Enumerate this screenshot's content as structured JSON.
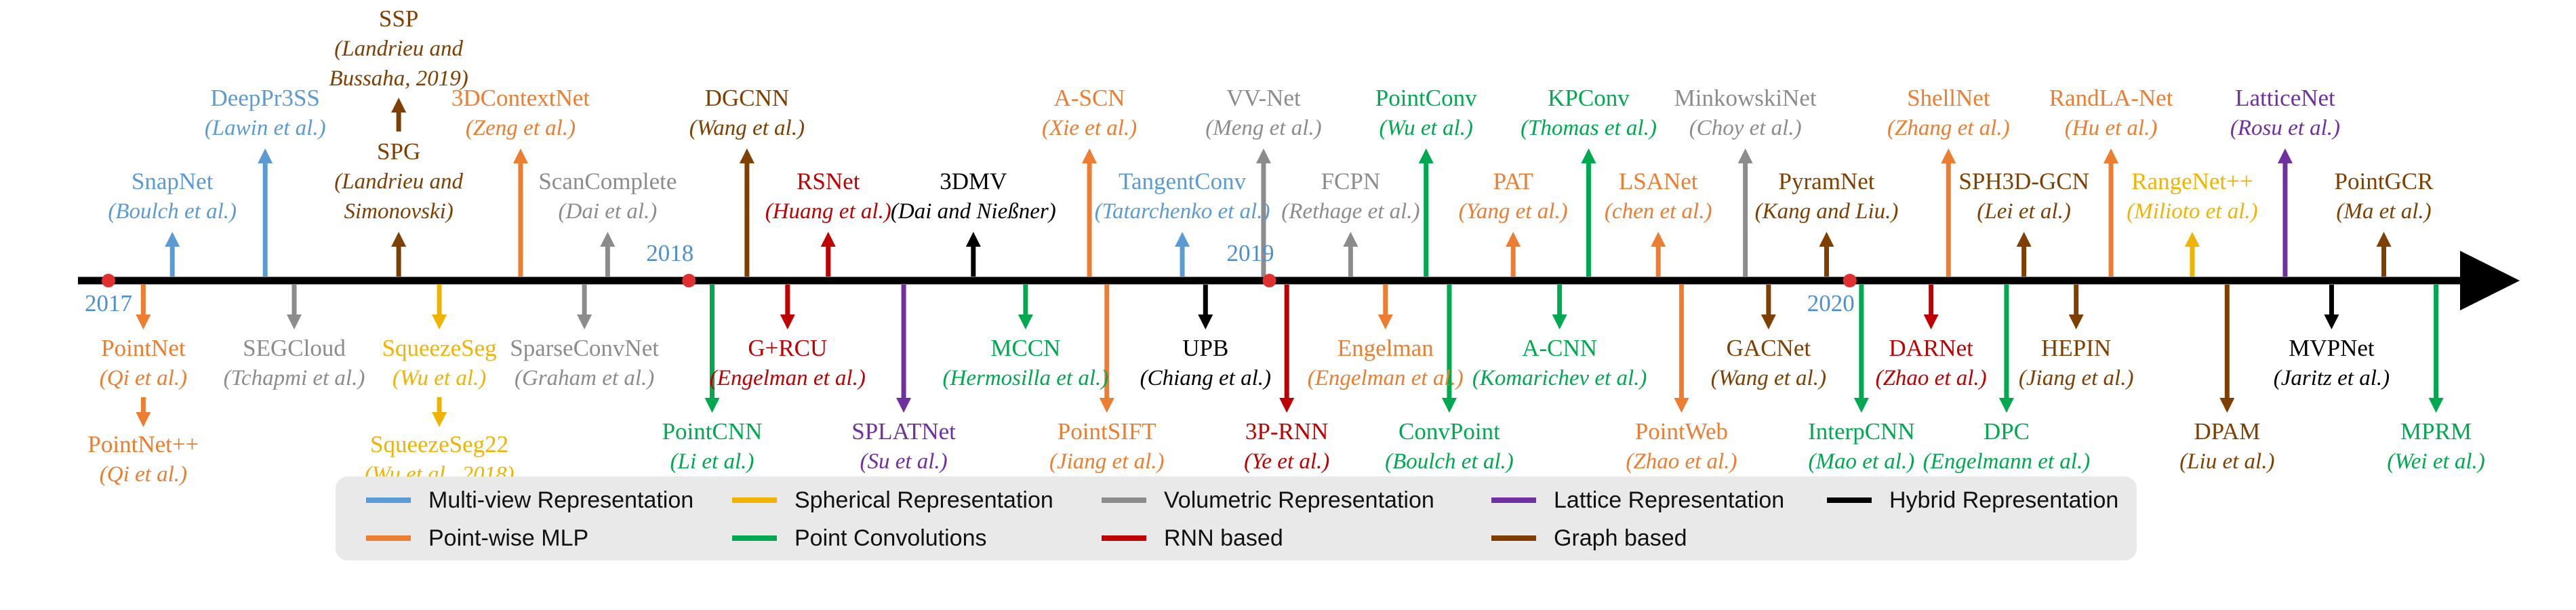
{
  "colors": {
    "multiview": "#5b9bd5",
    "pointmlp": "#ed7d31",
    "spherical": "#f0b400",
    "convolution": "#00a94f",
    "volumetric": "#8c8c8c",
    "rnn": "#c00000",
    "lattice": "#7030a0",
    "graph": "#7f3f00",
    "hybrid": "#000000",
    "axis": "#000000",
    "yearmark": "#e03030",
    "yeartext": "#4f8fd0"
  },
  "years": [
    {
      "label": "2017",
      "t": 2017.0
    },
    {
      "label": "2018",
      "t": 2018.0
    },
    {
      "label": "2019",
      "t": 2019.0
    },
    {
      "label": "2020",
      "t": 2020.0
    }
  ],
  "methods": [
    {
      "name": "SnapNet",
      "authors": "(Boulch et al.)",
      "cat": "multiview",
      "side": "up",
      "t": 2017.11,
      "len": 0.35
    },
    {
      "name": "DeepPr3SS",
      "authors": "(Lawin et al.)",
      "cat": "multiview",
      "side": "up",
      "t": 2017.27,
      "len": 0.85
    },
    {
      "name": "SSP",
      "authors": "(Landrieu and Bussaha, 2019)",
      "cat": "graph",
      "side": "up",
      "t": 2017.5,
      "len": 0.35,
      "stack": 2
    },
    {
      "name": "SPG",
      "authors": "(Landrieu and Simonovski)",
      "cat": "graph",
      "side": "up",
      "t": 2017.5,
      "len": 0.35
    },
    {
      "name": "3DContextNet",
      "authors": "(Zeng et al.)",
      "cat": "pointmlp",
      "side": "up",
      "t": 2017.71,
      "len": 0.85
    },
    {
      "name": "ScanComplete",
      "authors": "(Dai et al.)",
      "cat": "volumetric",
      "side": "up",
      "t": 2017.86,
      "len": 0.35
    },
    {
      "name": "DGCNN",
      "authors": "(Wang et al.)",
      "cat": "graph",
      "side": "up",
      "t": 2018.1,
      "len": 0.85
    },
    {
      "name": "RSNet",
      "authors": "(Huang et al.)",
      "cat": "rnn",
      "side": "up",
      "t": 2018.24,
      "len": 0.35
    },
    {
      "name": "3DMV",
      "authors": "(Dai and Nießner)",
      "cat": "hybrid",
      "side": "up",
      "t": 2018.49,
      "len": 0.35
    },
    {
      "name": "A-SCN",
      "authors": "(Xie et al.)",
      "cat": "pointmlp",
      "side": "up",
      "t": 2018.69,
      "len": 0.85
    },
    {
      "name": "TangentConv",
      "authors": "(Tatarchenko et al.)",
      "cat": "multiview",
      "side": "up",
      "t": 2018.85,
      "len": 0.35
    },
    {
      "name": "VV-Net",
      "authors": "(Meng et al.)",
      "cat": "volumetric",
      "side": "up",
      "t": 2018.99,
      "len": 0.85
    },
    {
      "name": "FCPN",
      "authors": "(Rethage et al.)",
      "cat": "volumetric",
      "side": "up",
      "t": 2019.14,
      "len": 0.35
    },
    {
      "name": "PointConv",
      "authors": "(Wu et al.)",
      "cat": "convolution",
      "side": "up",
      "t": 2019.27,
      "len": 0.85
    },
    {
      "name": "PAT",
      "authors": "(Yang et al.)",
      "cat": "pointmlp",
      "side": "up",
      "t": 2019.42,
      "len": 0.35
    },
    {
      "name": "KPConv",
      "authors": "(Thomas et al.)",
      "cat": "convolution",
      "side": "up",
      "t": 2019.55,
      "len": 0.85
    },
    {
      "name": "LSANet",
      "authors": "(chen et al.)",
      "cat": "pointmlp",
      "side": "up",
      "t": 2019.67,
      "len": 0.35
    },
    {
      "name": "MinkowskiNet",
      "authors": "(Choy et al.)",
      "cat": "volumetric",
      "side": "up",
      "t": 2019.82,
      "len": 0.85
    },
    {
      "name": "PyramNet",
      "authors": "(Kang and Liu.)",
      "cat": "graph",
      "side": "up",
      "t": 2019.96,
      "len": 0.35
    },
    {
      "name": "ShellNet",
      "authors": "(Zhang et al.)",
      "cat": "pointmlp",
      "side": "up",
      "t": 2020.17,
      "len": 0.85
    },
    {
      "name": "SPH3D-GCN",
      "authors": "(Lei et al.)",
      "cat": "graph",
      "side": "up",
      "t": 2020.3,
      "len": 0.35
    },
    {
      "name": "RandLA-Net",
      "authors": "(Hu et al.)",
      "cat": "pointmlp",
      "side": "up",
      "t": 2020.45,
      "len": 0.85
    },
    {
      "name": "RangeNet++",
      "authors": "(Milioto et al.)",
      "cat": "spherical",
      "side": "up",
      "t": 2020.59,
      "len": 0.35
    },
    {
      "name": "LatticeNet",
      "authors": "(Rosu et al.)",
      "cat": "lattice",
      "side": "up",
      "t": 2020.75,
      "len": 0.85
    },
    {
      "name": "PointGCR",
      "authors": "(Ma et al.)",
      "cat": "graph",
      "side": "up",
      "t": 2020.92,
      "len": 0.35
    },
    {
      "name": "PointNet",
      "authors": "(Qi et al.)",
      "cat": "pointmlp",
      "side": "down",
      "t": 2017.06,
      "len": 0.35
    },
    {
      "name": "PointNet++",
      "authors": "(Qi et al.)",
      "cat": "pointmlp",
      "side": "down",
      "t": 2017.06,
      "len": 0.35,
      "stack": 2
    },
    {
      "name": "SEGCloud",
      "authors": "(Tchapmi et al.)",
      "cat": "volumetric",
      "side": "down",
      "t": 2017.32,
      "len": 0.35
    },
    {
      "name": "SqueezeSeg",
      "authors": "(Wu et al.)",
      "cat": "spherical",
      "side": "down",
      "t": 2017.57,
      "len": 0.35
    },
    {
      "name": "SqueezeSeg22",
      "authors": "(Wu et al., 2018)",
      "cat": "spherical",
      "side": "down",
      "t": 2017.57,
      "len": 0.35,
      "stack": 2
    },
    {
      "name": "SparseConvNet",
      "authors": "(Graham et al.)",
      "cat": "volumetric",
      "side": "down",
      "t": 2017.82,
      "len": 0.35
    },
    {
      "name": "PointCNN",
      "authors": "(Li et al.)",
      "cat": "convolution",
      "side": "down",
      "t": 2018.04,
      "len": 0.85
    },
    {
      "name": "G+RCU",
      "authors": "(Engelman et al.)",
      "cat": "rnn",
      "side": "down",
      "t": 2018.17,
      "len": 0.35
    },
    {
      "name": "SPLATNet",
      "authors": "(Su et al.)",
      "cat": "lattice",
      "side": "down",
      "t": 2018.37,
      "len": 0.85
    },
    {
      "name": "MCCN",
      "authors": "(Hermosilla et al.)",
      "cat": "convolution",
      "side": "down",
      "t": 2018.58,
      "len": 0.35
    },
    {
      "name": "PointSIFT",
      "authors": "(Jiang et al.)",
      "cat": "pointmlp",
      "side": "down",
      "t": 2018.72,
      "len": 0.85
    },
    {
      "name": "UPB",
      "authors": "(Chiang et al.)",
      "cat": "hybrid",
      "side": "down",
      "t": 2018.89,
      "len": 0.35
    },
    {
      "name": "3P-RNN",
      "authors": "(Ye et al.)",
      "cat": "rnn",
      "side": "down",
      "t": 2019.03,
      "len": 0.85
    },
    {
      "name": "Engelman",
      "authors": "(Engelman et al.)",
      "cat": "pointmlp",
      "side": "down",
      "t": 2019.2,
      "len": 0.35
    },
    {
      "name": "ConvPoint",
      "authors": "(Boulch et al.)",
      "cat": "convolution",
      "side": "down",
      "t": 2019.31,
      "len": 0.85
    },
    {
      "name": "A-CNN",
      "authors": "(Komarichev et al.)",
      "cat": "convolution",
      "side": "down",
      "t": 2019.5,
      "len": 0.35
    },
    {
      "name": "PointWeb",
      "authors": "(Zhao et al.)",
      "cat": "pointmlp",
      "side": "down",
      "t": 2019.71,
      "len": 0.85
    },
    {
      "name": "GACNet",
      "authors": "(Wang et al.)",
      "cat": "graph",
      "side": "down",
      "t": 2019.86,
      "len": 0.35
    },
    {
      "name": "InterpCNN",
      "authors": "(Mao et al.)",
      "cat": "convolution",
      "side": "down",
      "t": 2020.02,
      "len": 0.85
    },
    {
      "name": "DARNet",
      "authors": "(Zhao et al.)",
      "cat": "rnn",
      "side": "down",
      "t": 2020.14,
      "len": 0.35
    },
    {
      "name": "DPC",
      "authors": "(Engelmann et al.)",
      "cat": "convolution",
      "side": "down",
      "t": 2020.27,
      "len": 0.85
    },
    {
      "name": "HEPIN",
      "authors": "(Jiang et al.)",
      "cat": "graph",
      "side": "down",
      "t": 2020.39,
      "len": 0.35
    },
    {
      "name": "DPAM",
      "authors": "(Liu et al.)",
      "cat": "graph",
      "side": "down",
      "t": 2020.65,
      "len": 0.85
    },
    {
      "name": "MVPNet",
      "authors": "(Jaritz et al.)",
      "cat": "hybrid",
      "side": "down",
      "t": 2020.83,
      "len": 0.35
    },
    {
      "name": "MPRM",
      "authors": "(Wei et al.)",
      "cat": "convolution",
      "side": "down",
      "t": 2021.01,
      "len": 0.85
    }
  ],
  "legend": {
    "row1": [
      {
        "label": "Multi-view Representation",
        "cat": "multiview"
      },
      {
        "label": "Spherical Representation",
        "cat": "spherical"
      },
      {
        "label": "Volumetric Representation",
        "cat": "volumetric"
      },
      {
        "label": "Lattice Representation",
        "cat": "lattice"
      },
      {
        "label": "Hybrid Representation",
        "cat": "hybrid"
      }
    ],
    "row2": [
      {
        "label": "Point-wise MLP",
        "cat": "pointmlp"
      },
      {
        "label": "Point Convolutions",
        "cat": "convolution"
      },
      {
        "label": "RNN based",
        "cat": "rnn"
      },
      {
        "label": "Graph based",
        "cat": "graph"
      }
    ]
  }
}
